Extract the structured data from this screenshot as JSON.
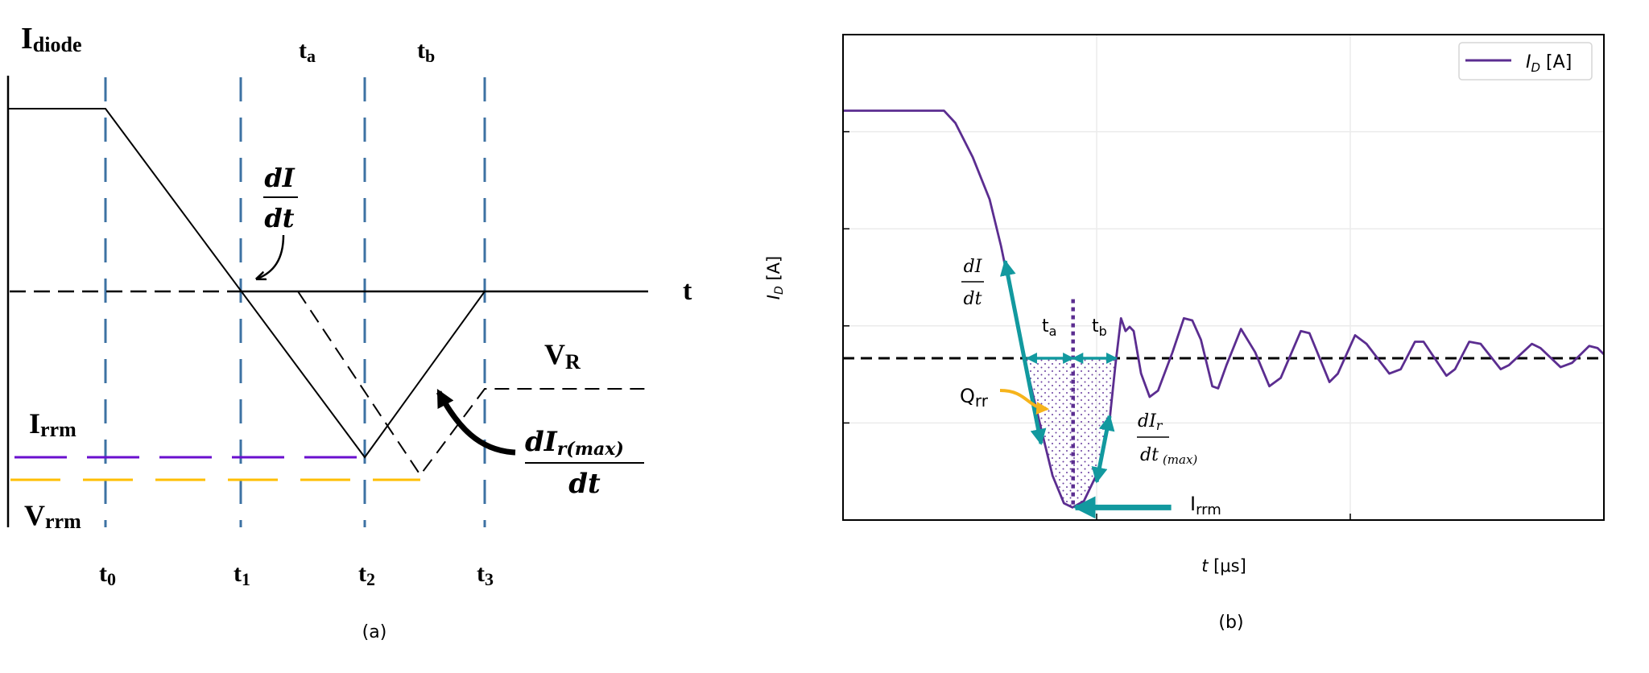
{
  "panel_a": {
    "caption": "(a)",
    "y_label": {
      "main": "I",
      "sub": "diode"
    },
    "x_label": "t",
    "interval_labels": [
      {
        "main": "t",
        "sub": "a"
      },
      {
        "main": "t",
        "sub": "b"
      }
    ],
    "time_markers": [
      {
        "main": "t",
        "sub": "0"
      },
      {
        "main": "t",
        "sub": "1"
      },
      {
        "main": "t",
        "sub": "2"
      },
      {
        "main": "t",
        "sub": "3"
      }
    ],
    "didt": {
      "num": "dI",
      "den": "dt"
    },
    "vr": {
      "main": "V",
      "sub": "R"
    },
    "irrm": {
      "main": "I",
      "sub": "rrm"
    },
    "vrrm": {
      "main": "V",
      "sub": "rrm"
    },
    "dir_max": {
      "num": "dI",
      "num_sub": "r(max)",
      "den": "dt"
    },
    "colors": {
      "current": "#000000",
      "markers": "#3d72a3",
      "irrm_line": "#6a0fcf",
      "vrrm_line": "#ffbf00"
    }
  },
  "panel_b": {
    "caption": "(b)",
    "annotations": {
      "didt": {
        "num": "dI",
        "den": "dt"
      },
      "ta": {
        "main": "t",
        "sub": "a"
      },
      "tb": {
        "main": "t",
        "sub": "b"
      },
      "qrr": {
        "main": "Q",
        "sub": "rr"
      },
      "dir_max": {
        "num": "dI",
        "num_sub": "r",
        "den": "dt",
        "den_sub": "(max)"
      },
      "irrm": {
        "main": "I",
        "sub": "rrm"
      }
    },
    "colors": {
      "curve": "#5b2d90",
      "annotation": "#12999f",
      "qrr_arrow": "#f6b41c",
      "zero_line": "#000000"
    }
  },
  "chart_data": {
    "type": "line",
    "title": "",
    "xlabel": {
      "main": "t",
      "unit": " [μs]"
    },
    "ylabel": {
      "main": "I",
      "sub": "D",
      "unit": " [A]"
    },
    "xlim": [
      0,
      3
    ],
    "ylim": [
      -1,
      2
    ],
    "x_gridlines": [
      1,
      2
    ],
    "y_gridlines": [
      -0.4,
      0.2,
      0.8,
      1.4
    ],
    "tick_labels_shown": false,
    "grid": true,
    "legend": {
      "placement": "top-right",
      "entries": [
        {
          "main": "I",
          "sub": "D",
          "unit": " [A]"
        }
      ]
    },
    "reference_line_y": 0,
    "series": [
      {
        "name": "I_D [A]",
        "x": [
          0,
          0.218,
          0.398,
          0.443,
          0.511,
          0.578,
          0.623,
          0.713,
          0.781,
          0.826,
          0.871,
          0.905,
          0.95,
          1.006,
          1.051,
          1.074,
          1.096,
          1.114,
          1.13,
          1.146,
          1.175,
          1.209,
          1.242,
          1.299,
          1.344,
          1.377,
          1.411,
          1.456,
          1.479,
          1.512,
          1.569,
          1.625,
          1.681,
          1.726,
          1.805,
          1.839,
          1.918,
          1.951,
          2.019,
          2.064,
          2.154,
          2.199,
          2.255,
          2.289,
          2.379,
          2.413,
          2.469,
          2.514,
          2.593,
          2.626,
          2.716,
          2.75,
          2.829,
          2.874,
          2.942,
          2.975,
          3.0
        ],
        "y": [
          1.53,
          1.53,
          1.53,
          1.454,
          1.244,
          0.982,
          0.693,
          0.01,
          -0.436,
          -0.725,
          -0.896,
          -0.922,
          -0.882,
          -0.699,
          -0.384,
          -0.042,
          0.247,
          0.168,
          0.194,
          0.168,
          -0.094,
          -0.239,
          -0.2,
          0.037,
          0.247,
          0.234,
          0.115,
          -0.173,
          -0.186,
          -0.042,
          0.181,
          0.037,
          -0.173,
          -0.121,
          0.168,
          0.155,
          -0.147,
          -0.095,
          0.142,
          0.089,
          -0.095,
          -0.068,
          0.102,
          0.102,
          -0.108,
          -0.068,
          0.102,
          0.089,
          -0.068,
          -0.042,
          0.089,
          0.063,
          -0.055,
          -0.029,
          0.076,
          0.063,
          0.024
        ]
      }
    ],
    "annotation_marks": {
      "recovery_instant_t": 0.907,
      "ta_range": [
        0.725,
        0.907
      ],
      "tb_range": [
        0.907,
        1.078
      ],
      "qrr_region_t": [
        0.713,
        1.074
      ],
      "didt_arrow": [
        [
          0.639,
          0.601
        ],
        [
          0.781,
          -0.528
        ]
      ],
      "dir_arrow": [
        [
          1.051,
          -0.357
        ],
        [
          1.0,
          -0.764
        ]
      ],
      "irrm_arrow": [
        [
          1.294,
          -0.922
        ],
        [
          0.916,
          -0.922
        ]
      ],
      "irrm_value": -0.922
    }
  }
}
